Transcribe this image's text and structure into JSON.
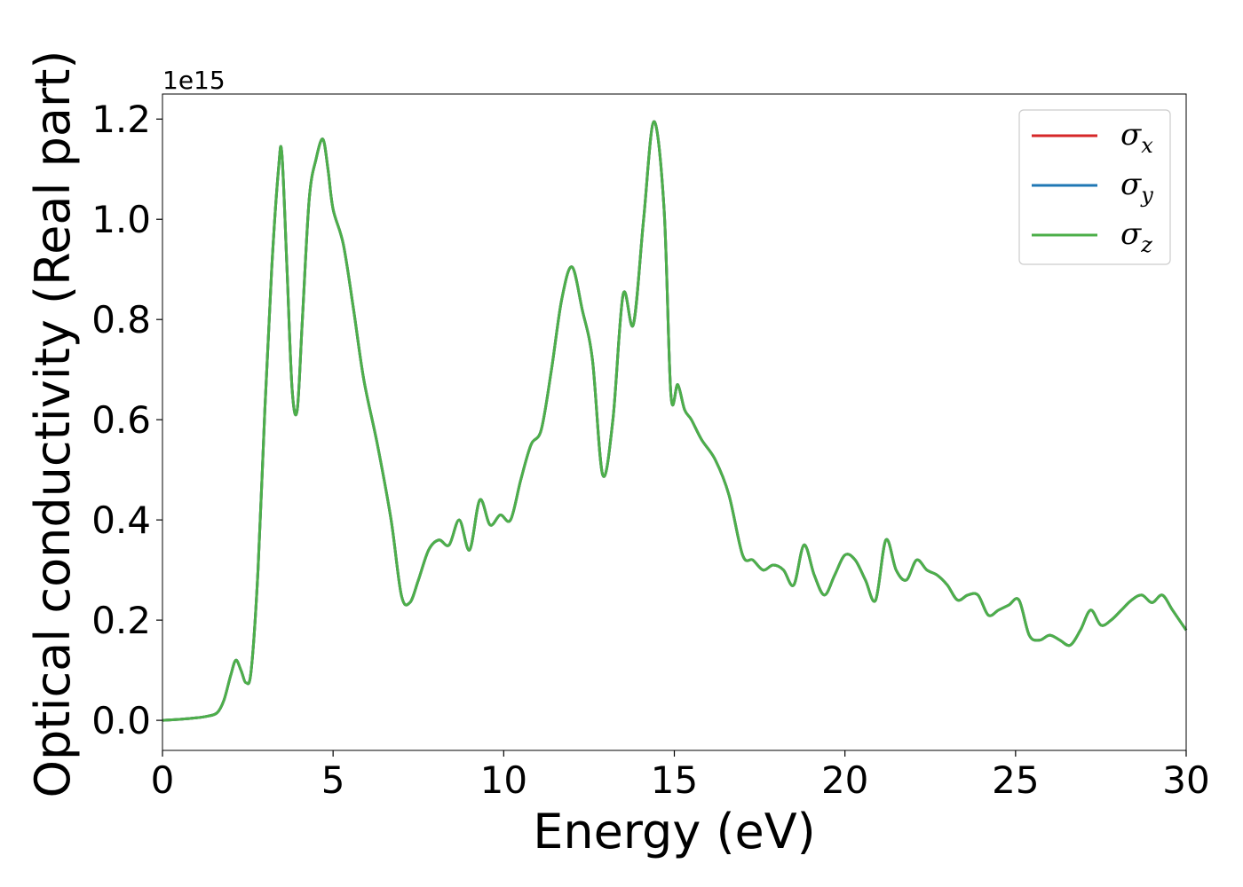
{
  "chart_data": {
    "type": "line",
    "title": "",
    "xlabel": "Energy (eV)",
    "ylabel": "Optical conductivity (Real part)",
    "y_offset_text": "1e15",
    "y_scale_factor": 1000000000000000.0,
    "xlim": [
      0,
      30
    ],
    "ylim": [
      -0.06,
      1.25
    ],
    "x_ticks": [
      0,
      5,
      10,
      15,
      20,
      25,
      30
    ],
    "x_tick_labels": [
      "0",
      "5",
      "10",
      "15",
      "20",
      "25",
      "30"
    ],
    "y_ticks": [
      0.0,
      0.2,
      0.4,
      0.6,
      0.8,
      1.0,
      1.2
    ],
    "y_tick_labels": [
      "0.0",
      "0.2",
      "0.4",
      "0.6",
      "0.8",
      "1.0",
      "1.2"
    ],
    "grid": false,
    "legend_position": "top-right",
    "series": [
      {
        "name": "σx",
        "symbol": "σ",
        "sub": "x",
        "color": "#d62728"
      },
      {
        "name": "σy",
        "symbol": "σ",
        "sub": "y",
        "color": "#1f77b4"
      },
      {
        "name": "σz",
        "symbol": "σ",
        "sub": "z",
        "color": "#4daf4a"
      }
    ],
    "x": [
      0,
      0.5,
      1.0,
      1.3,
      1.6,
      1.8,
      2.0,
      2.15,
      2.3,
      2.45,
      2.6,
      2.8,
      3.0,
      3.2,
      3.4,
      3.5,
      3.65,
      3.8,
      3.95,
      4.1,
      4.3,
      4.5,
      4.7,
      4.85,
      5.0,
      5.3,
      5.6,
      5.9,
      6.3,
      6.7,
      7.0,
      7.25,
      7.5,
      7.8,
      8.1,
      8.4,
      8.7,
      9.0,
      9.3,
      9.6,
      9.9,
      10.2,
      10.5,
      10.8,
      11.1,
      11.4,
      11.7,
      12.0,
      12.3,
      12.6,
      12.9,
      13.2,
      13.5,
      13.8,
      14.1,
      14.4,
      14.7,
      14.9,
      15.1,
      15.3,
      15.5,
      15.8,
      16.2,
      16.6,
      17.0,
      17.3,
      17.6,
      17.9,
      18.2,
      18.5,
      18.8,
      19.1,
      19.4,
      19.7,
      20.0,
      20.3,
      20.6,
      20.9,
      21.2,
      21.5,
      21.8,
      22.1,
      22.4,
      22.7,
      23.0,
      23.3,
      23.6,
      23.9,
      24.2,
      24.5,
      24.8,
      25.1,
      25.4,
      25.7,
      26.0,
      26.3,
      26.6,
      26.9,
      27.2,
      27.5,
      27.8,
      28.1,
      28.4,
      28.7,
      29.0,
      29.3,
      29.6,
      30.0
    ],
    "values": [
      0.0,
      0.002,
      0.005,
      0.008,
      0.015,
      0.04,
      0.09,
      0.12,
      0.1,
      0.075,
      0.1,
      0.3,
      0.62,
      0.9,
      1.1,
      1.13,
      0.9,
      0.66,
      0.62,
      0.8,
      1.04,
      1.12,
      1.16,
      1.1,
      1.02,
      0.95,
      0.82,
      0.68,
      0.55,
      0.4,
      0.25,
      0.235,
      0.28,
      0.34,
      0.36,
      0.35,
      0.4,
      0.34,
      0.44,
      0.39,
      0.41,
      0.4,
      0.48,
      0.55,
      0.58,
      0.7,
      0.84,
      0.905,
      0.82,
      0.72,
      0.49,
      0.6,
      0.85,
      0.79,
      1.0,
      1.195,
      1.02,
      0.65,
      0.67,
      0.62,
      0.6,
      0.56,
      0.52,
      0.45,
      0.33,
      0.32,
      0.3,
      0.31,
      0.3,
      0.27,
      0.35,
      0.29,
      0.25,
      0.29,
      0.33,
      0.32,
      0.28,
      0.24,
      0.36,
      0.3,
      0.28,
      0.32,
      0.3,
      0.29,
      0.27,
      0.24,
      0.25,
      0.25,
      0.21,
      0.22,
      0.23,
      0.24,
      0.17,
      0.16,
      0.17,
      0.16,
      0.15,
      0.18,
      0.22,
      0.19,
      0.2,
      0.22,
      0.24,
      0.25,
      0.235,
      0.25,
      0.22,
      0.18
    ]
  }
}
